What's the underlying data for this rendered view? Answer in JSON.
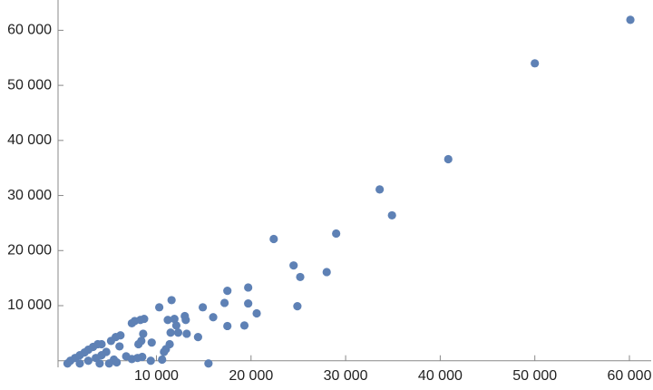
{
  "chart_data": {
    "type": "scatter",
    "color": "#5e81b5",
    "xlim": [
      -400,
      62300
    ],
    "ylim": [
      -1200,
      65500
    ],
    "xticks": [
      {
        "value": 10000,
        "label": "10 000"
      },
      {
        "value": 20000,
        "label": "20 000"
      },
      {
        "value": 30000,
        "label": "30 000"
      },
      {
        "value": 40000,
        "label": "40 000"
      },
      {
        "value": 50000,
        "label": "50 000"
      },
      {
        "value": 60000,
        "label": "60 000"
      }
    ],
    "yticks": [
      {
        "value": 10000,
        "label": "10 000"
      },
      {
        "value": 20000,
        "label": "20 000"
      },
      {
        "value": 30000,
        "label": "30 000"
      },
      {
        "value": 40000,
        "label": "40 000"
      },
      {
        "value": 50000,
        "label": "50 000"
      },
      {
        "value": 60000,
        "label": "60 000"
      }
    ],
    "x": [
      60100,
      50000,
      40850,
      33600,
      34900,
      22400,
      29000,
      24500,
      25200,
      28000,
      24900,
      19700,
      17500,
      11600,
      10300,
      14900,
      17200,
      19700,
      20600,
      19300,
      16000,
      17500,
      14400,
      13000,
      13100,
      11900,
      11200,
      12100,
      12300,
      13200,
      11500,
      11400,
      11000,
      10800,
      9500,
      10600,
      9400,
      8700,
      8300,
      7700,
      7400,
      8600,
      8400,
      8100,
      8500,
      15500,
      6200,
      5700,
      5200,
      6100,
      6800,
      5500,
      4200,
      3800,
      3300,
      2800,
      2400,
      1900,
      1400,
      900,
      600,
      4700,
      4200,
      3600,
      2800,
      1900,
      5800,
      5000,
      4000,
      7400,
      8000
    ],
    "y": [
      61900,
      54000,
      36600,
      31100,
      26400,
      22100,
      23100,
      17300,
      15200,
      16100,
      9900,
      13300,
      12700,
      11000,
      9700,
      9700,
      10500,
      10400,
      8600,
      6400,
      7900,
      6300,
      4300,
      8100,
      7400,
      7600,
      7400,
      6400,
      5100,
      4900,
      5100,
      3000,
      2100,
      1600,
      3300,
      200,
      0,
      7600,
      7400,
      7200,
      6800,
      4900,
      3600,
      3000,
      700,
      -500,
      4600,
      4300,
      3600,
      2600,
      800,
      200,
      3000,
      3000,
      2500,
      2000,
      1500,
      1000,
      500,
      0,
      -500,
      1600,
      1000,
      500,
      0,
      -500,
      -300,
      -500,
      -500,
      300,
      500
    ]
  }
}
